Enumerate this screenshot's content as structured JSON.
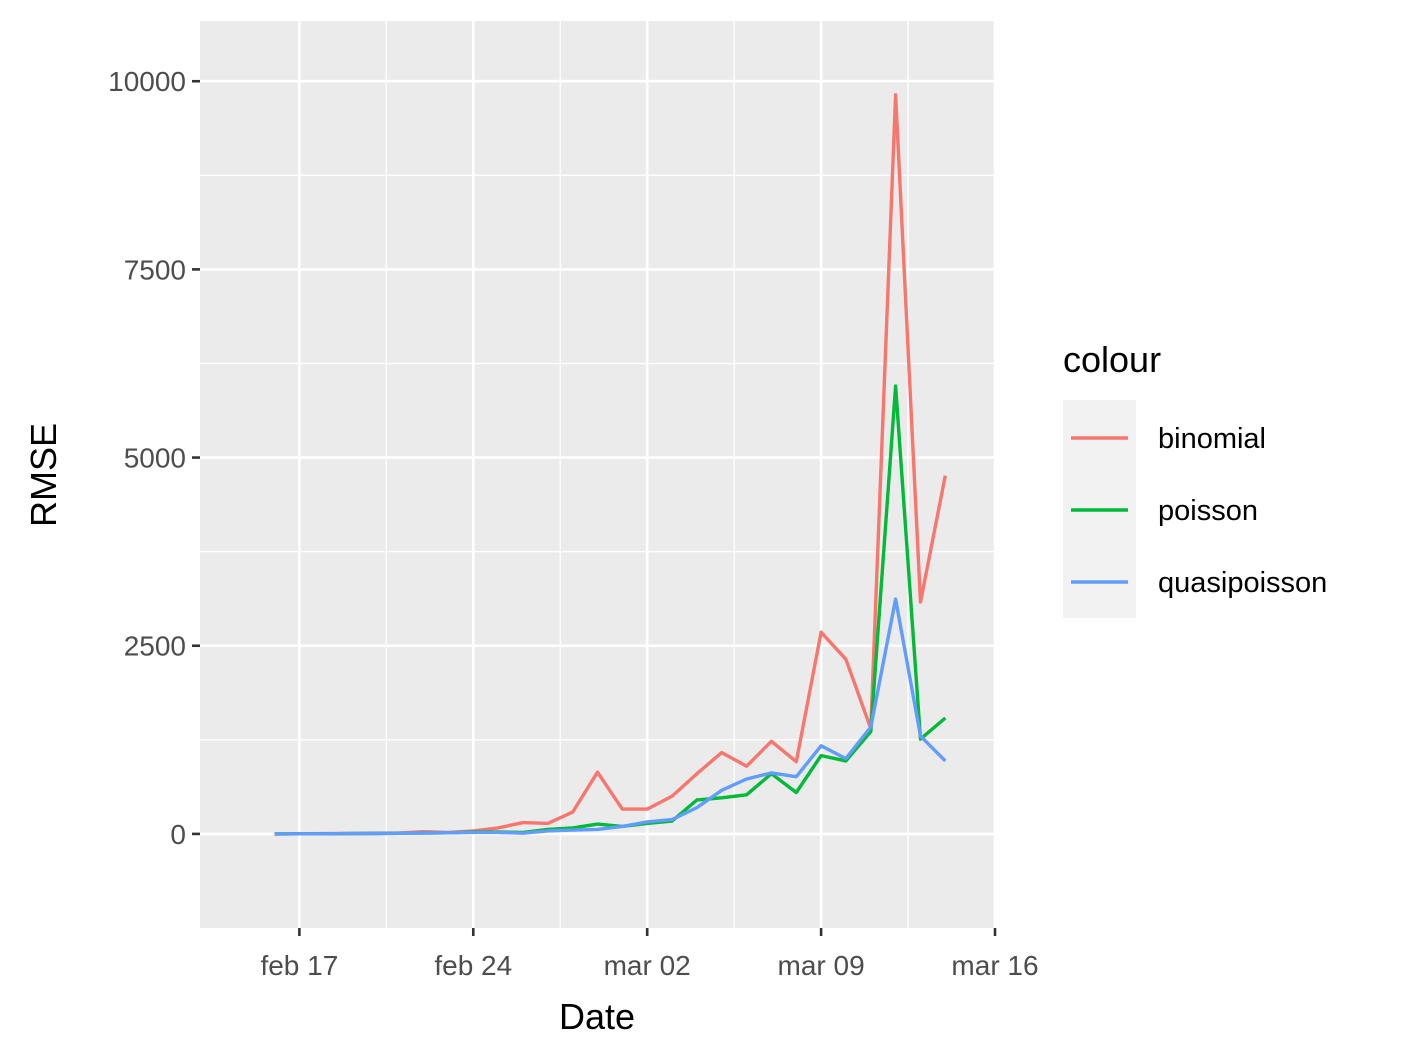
{
  "chart_data": {
    "type": "line",
    "xlabel": "Date",
    "ylabel": "RMSE",
    "x_axis": {
      "type": "date",
      "range": [
        "2020-02-13",
        "2020-03-16"
      ],
      "ticks": [
        {
          "date": "2020-02-17",
          "label": "feb 17"
        },
        {
          "date": "2020-02-24",
          "label": "feb 24"
        },
        {
          "date": "2020-03-02",
          "label": "mar 02"
        },
        {
          "date": "2020-03-09",
          "label": "mar 09"
        },
        {
          "date": "2020-03-16",
          "label": "mar 16"
        }
      ]
    },
    "y_axis": {
      "range": [
        -1250,
        10800
      ],
      "ticks": [
        {
          "value": 0,
          "label": "0"
        },
        {
          "value": 2500,
          "label": "2500"
        },
        {
          "value": 5000,
          "label": "5000"
        },
        {
          "value": 7500,
          "label": "7500"
        },
        {
          "value": 10000,
          "label": "10000"
        }
      ]
    },
    "grid": true,
    "background": "#ebebeb",
    "legend": {
      "title": "colour",
      "position": "right"
    },
    "x": [
      "2020-02-16",
      "2020-02-17",
      "2020-02-18",
      "2020-02-19",
      "2020-02-20",
      "2020-02-21",
      "2020-02-22",
      "2020-02-23",
      "2020-02-24",
      "2020-02-25",
      "2020-02-26",
      "2020-02-27",
      "2020-02-28",
      "2020-02-29",
      "2020-03-01",
      "2020-03-02",
      "2020-03-03",
      "2020-03-04",
      "2020-03-05",
      "2020-03-06",
      "2020-03-07",
      "2020-03-08",
      "2020-03-09",
      "2020-03-10",
      "2020-03-11",
      "2020-03-12",
      "2020-03-13",
      "2020-03-14",
      "2020-03-15"
    ],
    "series": [
      {
        "name": "binomial",
        "color": "#f8766d",
        "values": [
          0,
          2,
          4,
          6,
          10,
          12,
          30,
          20,
          40,
          80,
          150,
          140,
          290,
          820,
          330,
          330,
          500,
          800,
          1080,
          900,
          1230,
          960,
          2680,
          2320,
          1400,
          9820,
          3080,
          4760,
          null
        ]
      },
      {
        "name": "poisson",
        "color": "#00ba38",
        "values": [
          0,
          1,
          2,
          4,
          6,
          8,
          12,
          15,
          25,
          25,
          20,
          60,
          80,
          130,
          100,
          140,
          170,
          450,
          480,
          520,
          800,
          550,
          1040,
          970,
          1360,
          5950,
          1260,
          1540,
          null
        ]
      },
      {
        "name": "quasipoisson",
        "color": "#619cff",
        "values": [
          0,
          1,
          2,
          4,
          6,
          8,
          12,
          15,
          20,
          20,
          10,
          40,
          50,
          60,
          100,
          160,
          190,
          350,
          580,
          730,
          810,
          760,
          1170,
          1000,
          1420,
          3120,
          1300,
          970,
          null
        ]
      }
    ]
  }
}
